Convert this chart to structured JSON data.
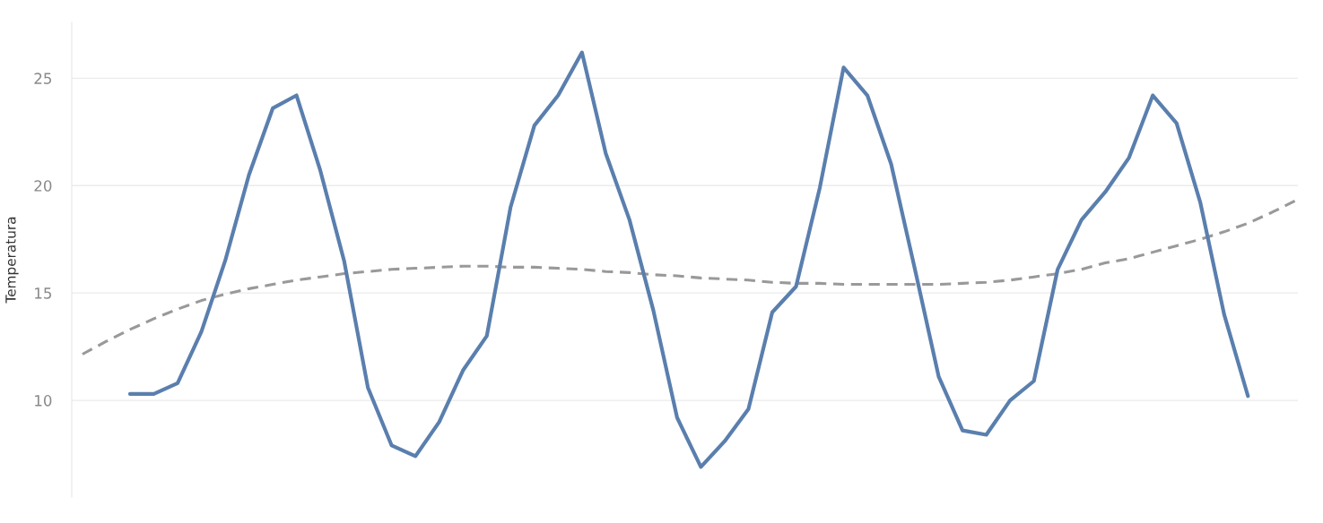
{
  "chart_data": {
    "type": "line",
    "ylabel": "Temperatura",
    "ylim": [
      5.5,
      27.6
    ],
    "yticks": [
      10,
      15,
      20,
      25
    ],
    "grid": "y",
    "tick_labels": "y",
    "categories": [
      null,
      null,
      null,
      null,
      null,
      null,
      null,
      null,
      null,
      null,
      null,
      null,
      null,
      null,
      null,
      null,
      null,
      null,
      null,
      null,
      null,
      null,
      null,
      null,
      null,
      null,
      null,
      null,
      null,
      null,
      null,
      null,
      null,
      null,
      null,
      null,
      null,
      null,
      null,
      null,
      null,
      null,
      null,
      null,
      null,
      null,
      null,
      null,
      null,
      null,
      null,
      null
    ],
    "series": [
      {
        "color": "#5a7fae",
        "values": [
          null,
          null,
          10.3,
          10.3,
          10.8,
          13.2,
          16.5,
          20.5,
          23.6,
          24.2,
          20.7,
          16.5,
          10.6,
          7.9,
          7.4,
          9.0,
          11.4,
          13.0,
          19.0,
          22.8,
          24.2,
          26.2,
          21.5,
          18.4,
          14.2,
          9.2,
          6.9,
          8.1,
          9.6,
          14.1,
          15.3,
          19.9,
          25.5,
          24.2,
          21.0,
          16.1,
          11.1,
          8.6,
          8.4,
          10.0,
          10.9,
          16.1,
          18.4,
          19.7,
          21.3,
          24.2,
          22.9,
          19.2,
          14.0,
          10.2,
          null,
          null
        ]
      },
      {
        "type": "line",
        "color": "#999999",
        "line_style": "dashed",
        "values": [
          12.15,
          12.75,
          13.3,
          13.8,
          14.25,
          14.65,
          14.95,
          15.2,
          15.4,
          15.6,
          15.75,
          15.9,
          16.0,
          16.1,
          16.15,
          16.2,
          16.25,
          16.25,
          16.2,
          16.2,
          16.15,
          16.1,
          16.0,
          15.95,
          15.85,
          15.8,
          15.7,
          15.65,
          15.6,
          15.5,
          15.45,
          15.45,
          15.4,
          15.4,
          15.4,
          15.4,
          15.4,
          15.45,
          15.5,
          15.6,
          15.75,
          15.9,
          16.1,
          16.4,
          16.6,
          16.9,
          17.2,
          17.5,
          17.85,
          18.25,
          18.75,
          19.3
        ]
      }
    ]
  }
}
